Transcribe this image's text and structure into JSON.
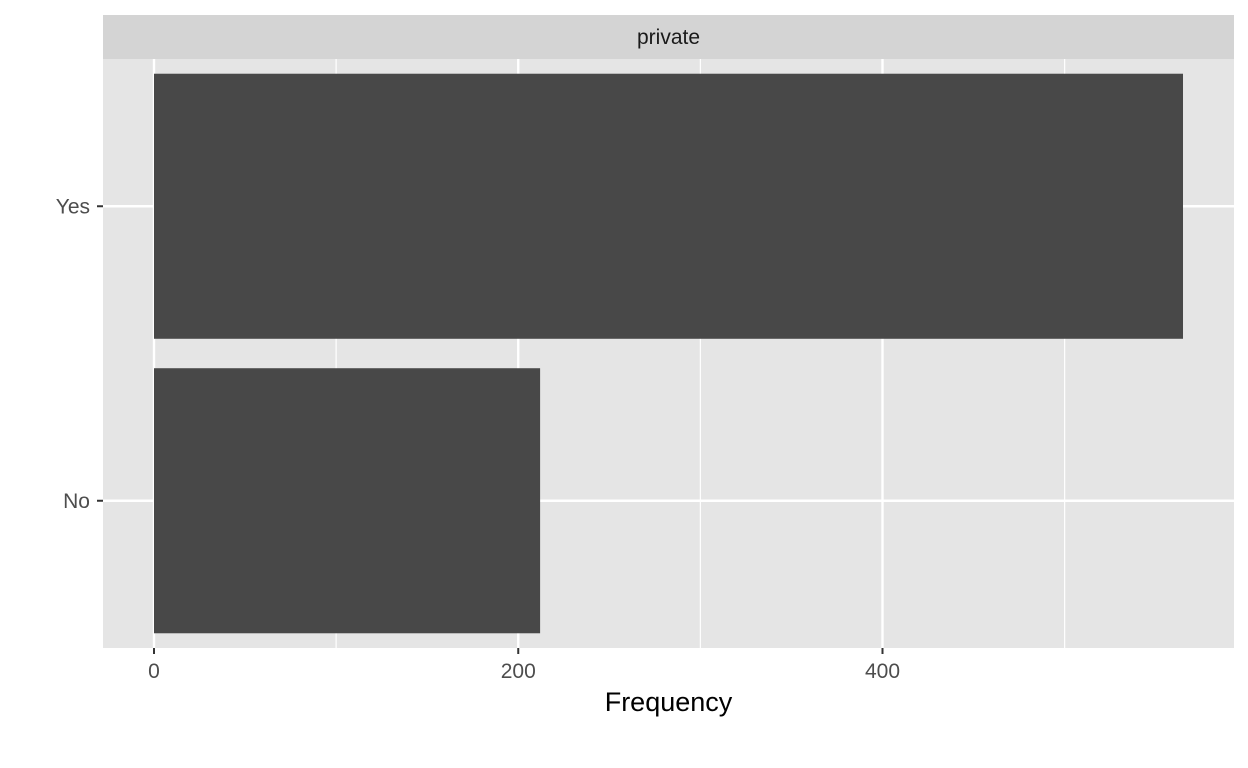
{
  "chart_data": {
    "type": "bar",
    "orientation": "horizontal",
    "facet_label": "private",
    "categories": [
      "Yes",
      "No"
    ],
    "values": [
      565,
      212
    ],
    "xlabel": "Frequency",
    "ylabel": "",
    "xlim": [
      -28,
      593
    ],
    "xticks": [
      0,
      200,
      400
    ],
    "xticks_minor": [
      100,
      300,
      500
    ],
    "grid": true,
    "colors": {
      "bar": "#484848",
      "panel_background": "#e5e5e5",
      "strip_background": "#d4d4d4",
      "grid": "#ffffff"
    }
  }
}
